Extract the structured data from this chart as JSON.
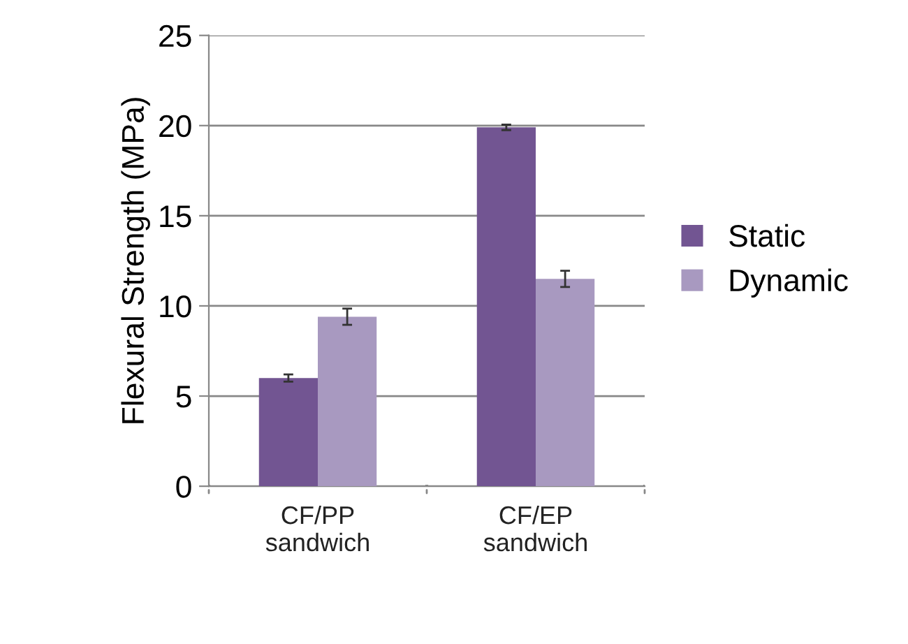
{
  "chart_data": {
    "type": "bar",
    "ylabel": "Flexural Strength (MPa)",
    "categories": [
      "CF/PP\nsandwich",
      "CF/EP\nsandwich"
    ],
    "series": [
      {
        "name": "Static",
        "color": "#725592",
        "values": [
          6.0,
          19.9
        ],
        "errors": [
          0.2,
          0.15
        ]
      },
      {
        "name": "Dynamic",
        "color": "#a899c0",
        "values": [
          9.4,
          11.5
        ],
        "errors": [
          0.45,
          0.45
        ]
      }
    ],
    "ylim": [
      0,
      25
    ],
    "yticks": [
      0,
      5,
      10,
      15,
      20,
      25
    ],
    "grid": "y",
    "legend": "right"
  }
}
